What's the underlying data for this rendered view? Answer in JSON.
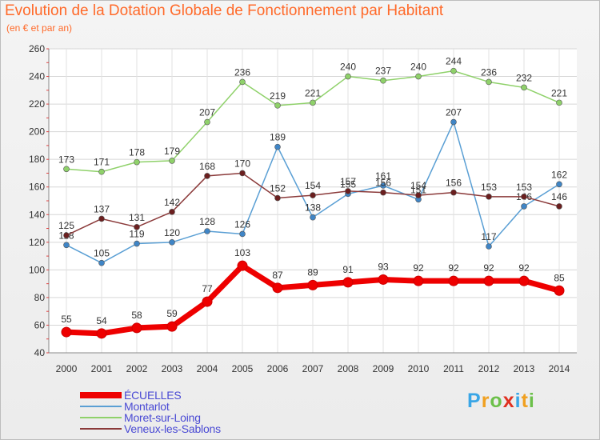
{
  "chart_data": {
    "type": "line",
    "title": "Evolution de la Dotation Globale de Fonctionnement par Habitant",
    "subtitle": "(en € et par an)",
    "xlabel": "",
    "ylabel": "",
    "ylim": [
      40,
      260
    ],
    "yticks": [
      40,
      60,
      80,
      100,
      120,
      140,
      160,
      180,
      200,
      220,
      240,
      260
    ],
    "categories": [
      "2000",
      "2001",
      "2002",
      "2003",
      "2004",
      "2005",
      "2006",
      "2007",
      "2008",
      "2009",
      "2010",
      "2011",
      "2012",
      "2013",
      "2014"
    ],
    "grid": true,
    "legend_position": "bottom-left",
    "series": [
      {
        "name": "Moret-sur-Loing",
        "color": "#8fd16a",
        "marker": "#8fd16a",
        "values": [
          173,
          171,
          178,
          179,
          207,
          236,
          219,
          221,
          240,
          237,
          240,
          244,
          236,
          232,
          221
        ]
      },
      {
        "name": "Montarlot",
        "color": "#5a9fd4",
        "marker": "#3f85c6",
        "values": [
          118,
          105,
          119,
          120,
          128,
          126,
          189,
          138,
          155,
          161,
          151,
          207,
          117,
          146,
          162
        ]
      },
      {
        "name": "Veneux-les-Sablons",
        "color": "#8b3a3a",
        "marker": "#6b1f1f",
        "values": [
          125,
          137,
          131,
          142,
          168,
          170,
          152,
          154,
          157,
          156,
          154,
          156,
          153,
          153,
          146
        ]
      },
      {
        "name": "ÉCUELLES",
        "color": "#ee0000",
        "marker": "#ee0000",
        "values": [
          55,
          54,
          58,
          59,
          77,
          103,
          87,
          89,
          91,
          93,
          92,
          92,
          92,
          92,
          85
        ]
      }
    ],
    "legend": [
      "ÉCUELLES",
      "Montarlot",
      "Moret-sur-Loing",
      "Veneux-les-Sablons"
    ]
  },
  "logo": {
    "letters": [
      "P",
      "r",
      "o",
      "x",
      "i",
      "t",
      "i"
    ],
    "colors": [
      "#3aa6e6",
      "#f0a020",
      "#6cc04a",
      "#e03020",
      "#3aa6e6",
      "#f0a020",
      "#6cc04a"
    ]
  }
}
